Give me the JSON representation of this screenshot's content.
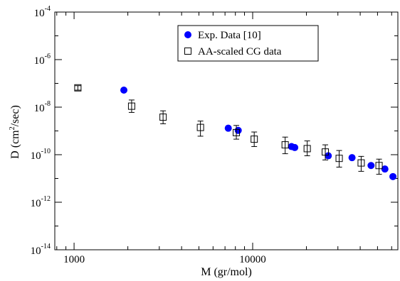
{
  "chart_data": {
    "type": "scatter",
    "title": "",
    "xlabel": "M (gr/mol)",
    "ylabel": "D (cm2/sec)",
    "ylabel_parts": {
      "prefix": "D (cm",
      "sup": "2",
      "suffix": "/sec)"
    },
    "x_scale": "log",
    "y_scale": "log",
    "xlim": [
      780,
      65000
    ],
    "ylim": [
      1e-14,
      0.0001
    ],
    "x_ticks": [
      1000,
      10000
    ],
    "x_tick_labels": [
      "1000",
      "10000"
    ],
    "y_ticks": [
      1e-14,
      1e-12,
      1e-10,
      1e-08,
      1e-06,
      0.0001
    ],
    "y_tick_labels": [
      {
        "base": "10",
        "exp": "-14"
      },
      {
        "base": "10",
        "exp": "-12"
      },
      {
        "base": "10",
        "exp": "-10"
      },
      {
        "base": "10",
        "exp": "-8"
      },
      {
        "base": "10",
        "exp": "-6"
      },
      {
        "base": "10",
        "exp": "-4"
      }
    ],
    "grid": false,
    "legend_position": "top-center",
    "series": [
      {
        "name": "Exp. Data [10]",
        "marker": "filled-circle",
        "color": "#0000ff",
        "points": [
          {
            "x": 1900,
            "y": 5.2e-08
          },
          {
            "x": 7300,
            "y": 1.3e-09
          },
          {
            "x": 8300,
            "y": 1.05e-09
          },
          {
            "x": 16500,
            "y": 2.2e-10
          },
          {
            "x": 17200,
            "y": 2e-10
          },
          {
            "x": 26500,
            "y": 9e-11
          },
          {
            "x": 36000,
            "y": 7.5e-11
          },
          {
            "x": 46000,
            "y": 3.5e-11
          },
          {
            "x": 55000,
            "y": 2.5e-11
          },
          {
            "x": 61000,
            "y": 1.2e-11
          }
        ]
      },
      {
        "name": "AA-scaled CG data",
        "marker": "open-square",
        "color": "#000000",
        "points": [
          {
            "x": 1050,
            "y": 6.5e-08,
            "yerr": [
              5.2e-08,
              8e-08
            ]
          },
          {
            "x": 2100,
            "y": 1.1e-08,
            "yerr": [
              6e-09,
              2e-08
            ]
          },
          {
            "x": 3150,
            "y": 3.8e-09,
            "yerr": [
              2e-09,
              7e-09
            ]
          },
          {
            "x": 5100,
            "y": 1.4e-09,
            "yerr": [
              6e-10,
              2.6e-09
            ]
          },
          {
            "x": 8100,
            "y": 8.5e-10,
            "yerr": [
              4.5e-10,
              1.7e-09
            ]
          },
          {
            "x": 10200,
            "y": 4.5e-10,
            "yerr": [
              2.2e-10,
              9e-10
            ]
          },
          {
            "x": 15200,
            "y": 2.6e-10,
            "yerr": [
              1.1e-10,
              5.5e-10
            ]
          },
          {
            "x": 20200,
            "y": 1.8e-10,
            "yerr": [
              9e-11,
              3.8e-10
            ]
          },
          {
            "x": 25500,
            "y": 1.3e-10,
            "yerr": [
              6e-11,
              2.6e-10
            ]
          },
          {
            "x": 30500,
            "y": 7e-11,
            "yerr": [
              3e-11,
              1.5e-10
            ]
          },
          {
            "x": 40500,
            "y": 4.5e-11,
            "yerr": [
              2e-11,
              8.5e-11
            ]
          },
          {
            "x": 51000,
            "y": 3.5e-11,
            "yerr": [
              1.5e-11,
              6.5e-11
            ]
          }
        ]
      }
    ]
  }
}
